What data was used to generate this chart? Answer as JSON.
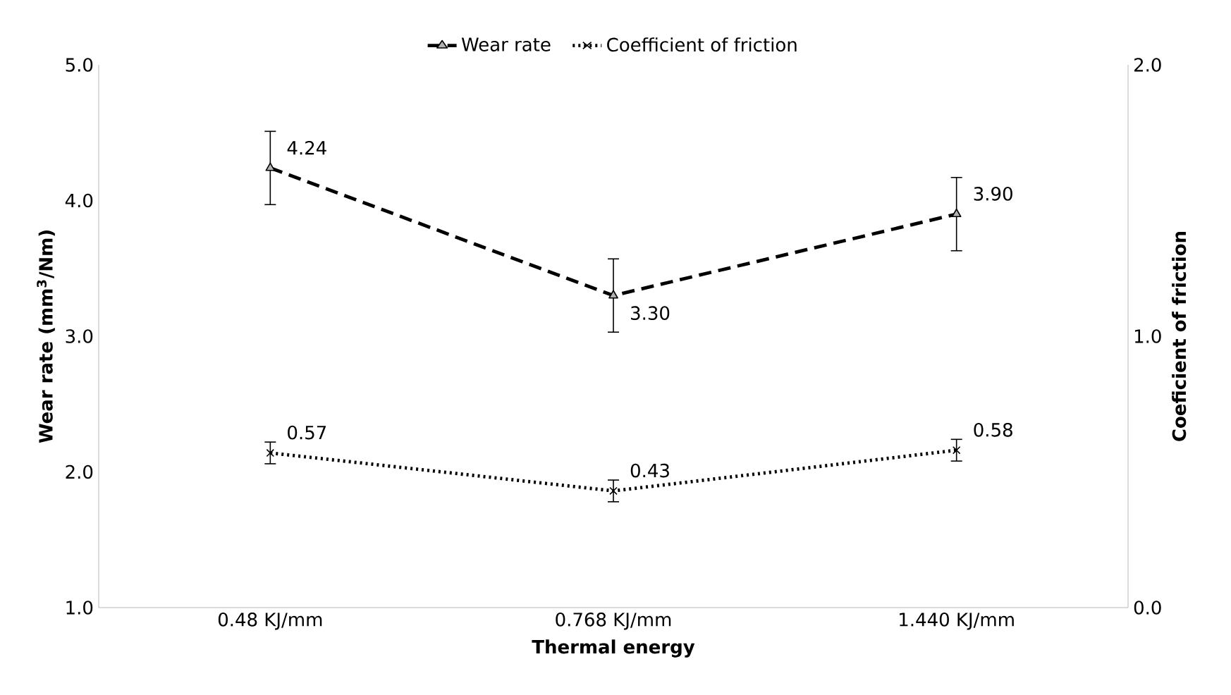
{
  "chart_data": {
    "type": "line",
    "xlabel": "Thermal energy",
    "ylabel": "Wear rate  (mm$^{3}$/Nm)",
    "y2label": "Coeficient of friction",
    "categories": [
      "0.48 KJ/mm",
      "0.768 KJ/mm",
      "1.440 KJ/mm"
    ],
    "series": [
      {
        "name": "Wear rate",
        "color": "#000000",
        "values": [
          4.24,
          3.3,
          3.9
        ],
        "errors": [
          0.27,
          0.27,
          0.27
        ],
        "value_labels": [
          "4.24",
          "3.30",
          "3.90"
        ],
        "marker": "triangle",
        "line_style": "dashed"
      },
      {
        "name": "Coefficient of friction",
        "color": "#000000",
        "values": [
          0.57,
          0.43,
          0.58
        ],
        "errors": [
          0.04,
          0.04,
          0.04
        ],
        "value_labels": [
          "0.57",
          "0.43",
          "0.58"
        ],
        "marker": "cross",
        "line_style": "dotted",
        "axis": "y2"
      }
    ],
    "ylim": [
      1,
      5
    ],
    "yticks": [
      {
        "value": 1,
        "label": "1.0"
      },
      {
        "value": 2,
        "label": "2.0"
      },
      {
        "value": 3,
        "label": "3.0"
      },
      {
        "value": 4,
        "label": "4.0"
      },
      {
        "value": 5,
        "label": "5.0"
      }
    ],
    "y2lim": [
      0,
      2
    ],
    "y2ticks": [
      {
        "value": 0,
        "label": "0.0"
      },
      {
        "value": 1,
        "label": "1.0"
      },
      {
        "value": 2,
        "label": "2.0"
      }
    ],
    "grid": false,
    "legend": "top"
  }
}
